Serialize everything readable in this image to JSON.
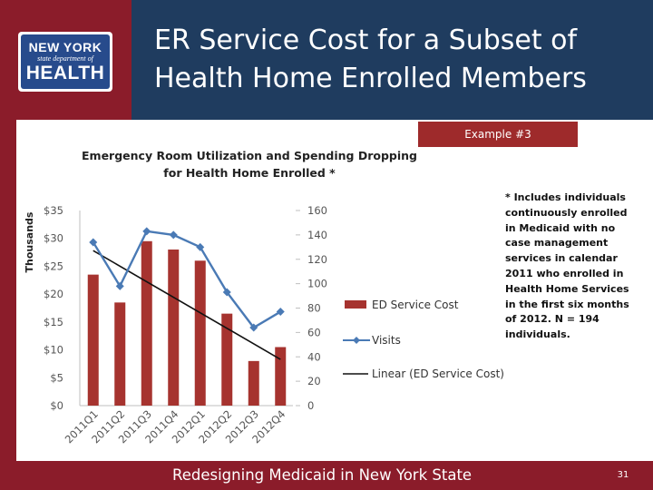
{
  "header": {
    "title_line1": "ER Service Cost for a Subset of",
    "title_line2": "Health Home Enrolled Members"
  },
  "logo": {
    "line1": "NEW YORK",
    "line2": "state department of",
    "line3": "HEALTH"
  },
  "badge": {
    "label": "Example #3"
  },
  "footnote": "* Includes individuals continuously enrolled in Medicaid with no case management services in calendar 2011 who enrolled in Health Home Services in the first six months of 2012. N = 194 individuals.",
  "footer": {
    "text": "Redesigning Medicaid in New York State",
    "page": "31"
  },
  "colors": {
    "header_bg": "#1f3c5f",
    "accent_red": "#8b1c2a",
    "bar": "#a6332f",
    "visits_line": "#4a7ab5",
    "trend_line": "#111111"
  },
  "chart_data": {
    "type": "bar",
    "title_line1": "Emergency Room Utilization and Spending Dropping",
    "title_line2": "for Health Home Enrolled *",
    "categories": [
      "2011Q1",
      "2011Q2",
      "2011Q3",
      "2011Q4",
      "2012Q1",
      "2012Q2",
      "2012Q3",
      "2012Q4"
    ],
    "ylabel": "Thousands",
    "y_left": {
      "min": 0,
      "max": 35,
      "ticks": [
        "$0",
        "$5",
        "$10",
        "$15",
        "$20",
        "$25",
        "$30",
        "$35"
      ]
    },
    "y_right": {
      "min": 0,
      "max": 160,
      "ticks": [
        "0",
        "20",
        "40",
        "60",
        "80",
        "100",
        "120",
        "140",
        "160"
      ]
    },
    "series": [
      {
        "name": "ED Service Cost",
        "kind": "bar",
        "axis": "left",
        "values": [
          23.5,
          18.5,
          29.5,
          28,
          26,
          16.5,
          8,
          10.5
        ]
      },
      {
        "name": "Visits",
        "kind": "line",
        "axis": "right",
        "values": [
          134,
          98,
          143,
          140,
          130,
          93,
          64,
          77
        ]
      },
      {
        "name": "Linear (ED Service Cost)",
        "kind": "trend",
        "axis": "left",
        "values": [
          27.8,
          25.0,
          22.2,
          19.4,
          16.7,
          13.9,
          11.1,
          8.3
        ]
      }
    ],
    "legend_position": "right"
  }
}
